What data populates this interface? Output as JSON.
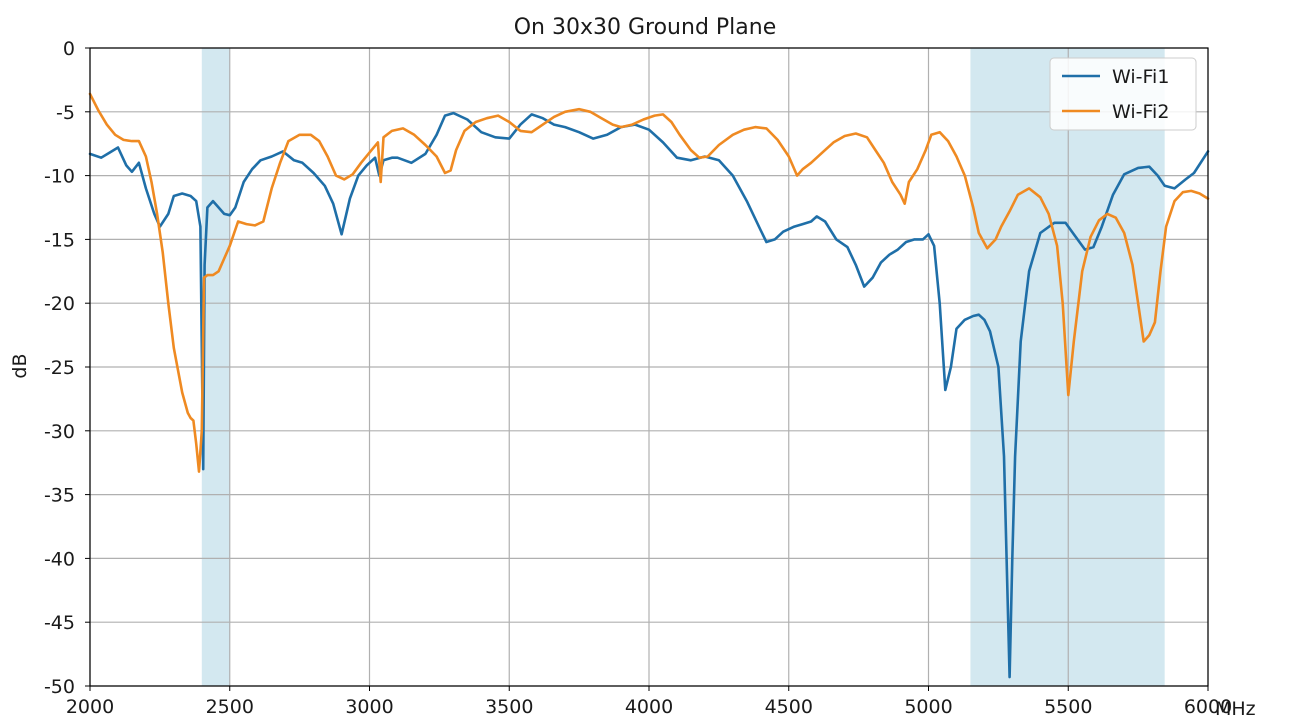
{
  "chart_data": {
    "type": "line",
    "title": "On 30x30 Ground Plane",
    "xlabel": "",
    "x_unit": "MHz",
    "ylabel": "dB",
    "xlim": [
      2000,
      6000
    ],
    "ylim": [
      -50,
      0
    ],
    "xticks": [
      2000,
      2500,
      3000,
      3500,
      4000,
      4500,
      5000,
      5500,
      6000
    ],
    "yticks": [
      0,
      -5,
      -10,
      -15,
      -20,
      -25,
      -30,
      -35,
      -40,
      -45,
      -50
    ],
    "grid": true,
    "legend_position": "top-right",
    "bands": [
      {
        "from": 2400,
        "to": 2500,
        "color": "#d3e8f0"
      },
      {
        "from": 5150,
        "to": 5845,
        "color": "#d3e8f0"
      }
    ],
    "series": [
      {
        "name": "Wi-Fi1",
        "color": "#1f6fa8",
        "points": [
          [
            2000,
            -8.3
          ],
          [
            2040,
            -8.6
          ],
          [
            2070,
            -8.2
          ],
          [
            2100,
            -7.8
          ],
          [
            2130,
            -9.2
          ],
          [
            2150,
            -9.7
          ],
          [
            2175,
            -9.0
          ],
          [
            2200,
            -11.0
          ],
          [
            2230,
            -13.0
          ],
          [
            2250,
            -14.0
          ],
          [
            2280,
            -13.0
          ],
          [
            2300,
            -11.6
          ],
          [
            2330,
            -11.4
          ],
          [
            2360,
            -11.6
          ],
          [
            2380,
            -12.0
          ],
          [
            2395,
            -14.0
          ],
          [
            2405,
            -33.0
          ],
          [
            2410,
            -17.0
          ],
          [
            2420,
            -12.5
          ],
          [
            2440,
            -12.0
          ],
          [
            2460,
            -12.5
          ],
          [
            2480,
            -13.0
          ],
          [
            2500,
            -13.1
          ],
          [
            2520,
            -12.5
          ],
          [
            2550,
            -10.5
          ],
          [
            2580,
            -9.5
          ],
          [
            2610,
            -8.8
          ],
          [
            2650,
            -8.5
          ],
          [
            2690,
            -8.1
          ],
          [
            2730,
            -8.8
          ],
          [
            2760,
            -9.0
          ],
          [
            2800,
            -9.8
          ],
          [
            2840,
            -10.8
          ],
          [
            2870,
            -12.2
          ],
          [
            2900,
            -14.6
          ],
          [
            2930,
            -11.8
          ],
          [
            2960,
            -10.0
          ],
          [
            2990,
            -9.2
          ],
          [
            3020,
            -8.6
          ],
          [
            3035,
            -10.0
          ],
          [
            3050,
            -8.8
          ],
          [
            3080,
            -8.6
          ],
          [
            3100,
            -8.6
          ],
          [
            3150,
            -9.0
          ],
          [
            3200,
            -8.3
          ],
          [
            3240,
            -6.8
          ],
          [
            3270,
            -5.3
          ],
          [
            3300,
            -5.1
          ],
          [
            3350,
            -5.6
          ],
          [
            3400,
            -6.6
          ],
          [
            3450,
            -7.0
          ],
          [
            3500,
            -7.1
          ],
          [
            3540,
            -6.0
          ],
          [
            3580,
            -5.2
          ],
          [
            3620,
            -5.5
          ],
          [
            3660,
            -6.0
          ],
          [
            3700,
            -6.2
          ],
          [
            3750,
            -6.6
          ],
          [
            3800,
            -7.1
          ],
          [
            3850,
            -6.8
          ],
          [
            3900,
            -6.2
          ],
          [
            3950,
            -6.0
          ],
          [
            4000,
            -6.4
          ],
          [
            4050,
            -7.4
          ],
          [
            4100,
            -8.6
          ],
          [
            4150,
            -8.8
          ],
          [
            4200,
            -8.5
          ],
          [
            4250,
            -8.8
          ],
          [
            4300,
            -10.0
          ],
          [
            4350,
            -12.0
          ],
          [
            4400,
            -14.3
          ],
          [
            4420,
            -15.2
          ],
          [
            4450,
            -15.0
          ],
          [
            4480,
            -14.4
          ],
          [
            4520,
            -14.0
          ],
          [
            4550,
            -13.8
          ],
          [
            4580,
            -13.6
          ],
          [
            4600,
            -13.2
          ],
          [
            4630,
            -13.6
          ],
          [
            4670,
            -15.0
          ],
          [
            4710,
            -15.6
          ],
          [
            4740,
            -17.0
          ],
          [
            4770,
            -18.7
          ],
          [
            4800,
            -18.0
          ],
          [
            4830,
            -16.8
          ],
          [
            4860,
            -16.2
          ],
          [
            4890,
            -15.8
          ],
          [
            4920,
            -15.2
          ],
          [
            4950,
            -15.0
          ],
          [
            4980,
            -15.0
          ],
          [
            5000,
            -14.6
          ],
          [
            5020,
            -15.5
          ],
          [
            5040,
            -20.0
          ],
          [
            5060,
            -26.8
          ],
          [
            5080,
            -25.0
          ],
          [
            5100,
            -22.0
          ],
          [
            5130,
            -21.3
          ],
          [
            5160,
            -21.0
          ],
          [
            5180,
            -20.9
          ],
          [
            5200,
            -21.3
          ],
          [
            5220,
            -22.2
          ],
          [
            5250,
            -25.0
          ],
          [
            5270,
            -32.0
          ],
          [
            5290,
            -49.3
          ],
          [
            5300,
            -40.0
          ],
          [
            5310,
            -32.0
          ],
          [
            5330,
            -23.0
          ],
          [
            5360,
            -17.5
          ],
          [
            5400,
            -14.5
          ],
          [
            5450,
            -13.7
          ],
          [
            5490,
            -13.7
          ],
          [
            5520,
            -14.6
          ],
          [
            5560,
            -15.8
          ],
          [
            5590,
            -15.6
          ],
          [
            5620,
            -14.0
          ],
          [
            5660,
            -11.5
          ],
          [
            5700,
            -9.9
          ],
          [
            5750,
            -9.4
          ],
          [
            5790,
            -9.3
          ],
          [
            5820,
            -10.0
          ],
          [
            5845,
            -10.8
          ],
          [
            5880,
            -11.0
          ],
          [
            5920,
            -10.3
          ],
          [
            5950,
            -9.8
          ],
          [
            6000,
            -8.1
          ]
        ]
      },
      {
        "name": "Wi-Fi2",
        "color": "#ef8a22",
        "points": [
          [
            2000,
            -3.6
          ],
          [
            2030,
            -4.9
          ],
          [
            2060,
            -6.0
          ],
          [
            2090,
            -6.8
          ],
          [
            2120,
            -7.2
          ],
          [
            2150,
            -7.3
          ],
          [
            2175,
            -7.3
          ],
          [
            2200,
            -8.5
          ],
          [
            2220,
            -10.5
          ],
          [
            2240,
            -13.0
          ],
          [
            2260,
            -16.0
          ],
          [
            2280,
            -20.0
          ],
          [
            2300,
            -23.5
          ],
          [
            2330,
            -27.0
          ],
          [
            2350,
            -28.6
          ],
          [
            2360,
            -29.0
          ],
          [
            2370,
            -29.2
          ],
          [
            2380,
            -31.0
          ],
          [
            2390,
            -33.2
          ],
          [
            2400,
            -30.0
          ],
          [
            2408,
            -18.0
          ],
          [
            2420,
            -17.8
          ],
          [
            2440,
            -17.8
          ],
          [
            2460,
            -17.5
          ],
          [
            2480,
            -16.5
          ],
          [
            2500,
            -15.5
          ],
          [
            2530,
            -13.6
          ],
          [
            2560,
            -13.8
          ],
          [
            2590,
            -13.9
          ],
          [
            2620,
            -13.6
          ],
          [
            2650,
            -11.0
          ],
          [
            2680,
            -9.0
          ],
          [
            2710,
            -7.3
          ],
          [
            2750,
            -6.8
          ],
          [
            2790,
            -6.8
          ],
          [
            2820,
            -7.3
          ],
          [
            2850,
            -8.5
          ],
          [
            2880,
            -10.0
          ],
          [
            2910,
            -10.3
          ],
          [
            2940,
            -9.9
          ],
          [
            2970,
            -9.0
          ],
          [
            3000,
            -8.2
          ],
          [
            3030,
            -7.4
          ],
          [
            3040,
            -10.5
          ],
          [
            3050,
            -7.0
          ],
          [
            3080,
            -6.5
          ],
          [
            3120,
            -6.3
          ],
          [
            3160,
            -6.8
          ],
          [
            3200,
            -7.6
          ],
          [
            3240,
            -8.5
          ],
          [
            3270,
            -9.8
          ],
          [
            3290,
            -9.6
          ],
          [
            3310,
            -8.0
          ],
          [
            3340,
            -6.5
          ],
          [
            3380,
            -5.8
          ],
          [
            3420,
            -5.5
          ],
          [
            3460,
            -5.3
          ],
          [
            3500,
            -5.8
          ],
          [
            3540,
            -6.5
          ],
          [
            3580,
            -6.6
          ],
          [
            3620,
            -6.0
          ],
          [
            3660,
            -5.4
          ],
          [
            3700,
            -5.0
          ],
          [
            3750,
            -4.8
          ],
          [
            3790,
            -5.0
          ],
          [
            3830,
            -5.5
          ],
          [
            3870,
            -6.0
          ],
          [
            3900,
            -6.2
          ],
          [
            3940,
            -6.0
          ],
          [
            3980,
            -5.6
          ],
          [
            4020,
            -5.3
          ],
          [
            4050,
            -5.2
          ],
          [
            4080,
            -5.8
          ],
          [
            4110,
            -6.8
          ],
          [
            4150,
            -8.0
          ],
          [
            4180,
            -8.6
          ],
          [
            4210,
            -8.5
          ],
          [
            4250,
            -7.6
          ],
          [
            4300,
            -6.8
          ],
          [
            4340,
            -6.4
          ],
          [
            4380,
            -6.2
          ],
          [
            4420,
            -6.3
          ],
          [
            4460,
            -7.2
          ],
          [
            4500,
            -8.5
          ],
          [
            4530,
            -10.0
          ],
          [
            4550,
            -9.5
          ],
          [
            4580,
            -9.0
          ],
          [
            4620,
            -8.2
          ],
          [
            4660,
            -7.4
          ],
          [
            4700,
            -6.9
          ],
          [
            4740,
            -6.7
          ],
          [
            4780,
            -7.0
          ],
          [
            4810,
            -8.0
          ],
          [
            4840,
            -9.0
          ],
          [
            4870,
            -10.5
          ],
          [
            4900,
            -11.5
          ],
          [
            4915,
            -12.2
          ],
          [
            4930,
            -10.5
          ],
          [
            4960,
            -9.5
          ],
          [
            4990,
            -8.0
          ],
          [
            5010,
            -6.8
          ],
          [
            5040,
            -6.6
          ],
          [
            5070,
            -7.3
          ],
          [
            5100,
            -8.5
          ],
          [
            5130,
            -10.0
          ],
          [
            5160,
            -12.5
          ],
          [
            5180,
            -14.5
          ],
          [
            5210,
            -15.7
          ],
          [
            5240,
            -15.0
          ],
          [
            5260,
            -14.0
          ],
          [
            5290,
            -12.8
          ],
          [
            5320,
            -11.5
          ],
          [
            5360,
            -11.0
          ],
          [
            5400,
            -11.7
          ],
          [
            5430,
            -13.0
          ],
          [
            5460,
            -15.5
          ],
          [
            5480,
            -20.0
          ],
          [
            5500,
            -27.2
          ],
          [
            5520,
            -23.0
          ],
          [
            5550,
            -17.5
          ],
          [
            5580,
            -14.8
          ],
          [
            5610,
            -13.5
          ],
          [
            5640,
            -13.0
          ],
          [
            5670,
            -13.3
          ],
          [
            5700,
            -14.5
          ],
          [
            5730,
            -17.0
          ],
          [
            5750,
            -20.0
          ],
          [
            5770,
            -23.0
          ],
          [
            5790,
            -22.5
          ],
          [
            5810,
            -21.5
          ],
          [
            5830,
            -17.5
          ],
          [
            5850,
            -14.0
          ],
          [
            5880,
            -12.0
          ],
          [
            5910,
            -11.3
          ],
          [
            5940,
            -11.2
          ],
          [
            5970,
            -11.4
          ],
          [
            6000,
            -11.8
          ]
        ]
      }
    ]
  }
}
